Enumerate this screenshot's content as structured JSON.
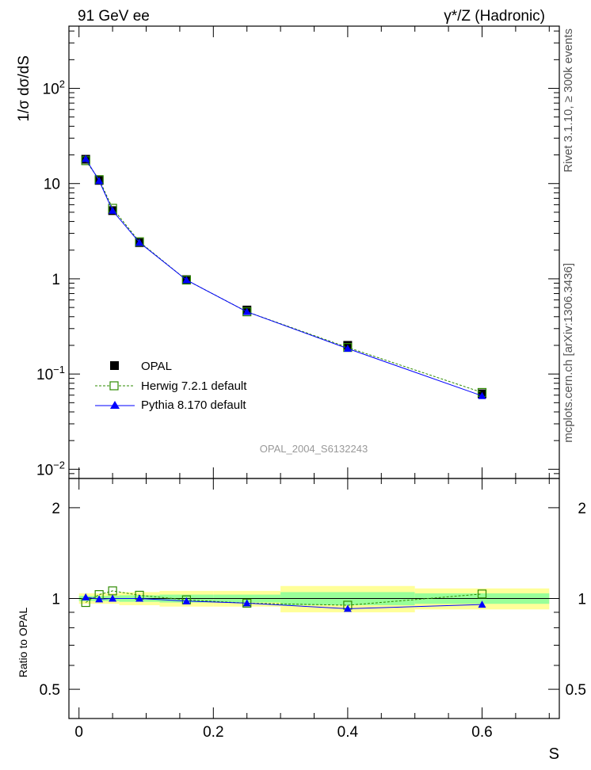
{
  "header": {
    "left_label": "91 GeV ee",
    "right_label": "γ*/Z (Hadronic)"
  },
  "side_labels": {
    "rivet": "Rivet 3.1.10, ≥ 300k events",
    "mcplots": "mcplots.cern.ch [arXiv:1306.3436]"
  },
  "analysis_id": "OPAL_2004_S6132243",
  "colors": {
    "data": "#000000",
    "herwig": "#2e8b00",
    "pythia": "#0000ff",
    "band_inner": "#99ff99",
    "band_outer": "#ffff99"
  },
  "chart_data": [
    {
      "type": "line",
      "panel": "main",
      "ylabel": "1/σ dσ/dS",
      "yscale": "log",
      "xlim": [
        -0.015,
        0.715
      ],
      "ylim": [
        0.008,
        450
      ],
      "y_ticks": [
        {
          "value": 0.01,
          "label": "10",
          "exp": "−2"
        },
        {
          "value": 0.1,
          "label": "10",
          "exp": "−1"
        },
        {
          "value": 1,
          "label": "1",
          "exp": ""
        },
        {
          "value": 10,
          "label": "10",
          "exp": ""
        },
        {
          "value": 100,
          "label": "10",
          "exp": "2"
        }
      ],
      "legend_position": "middle-left",
      "series": [
        {
          "name": "OPAL",
          "style": "markers-square",
          "x": [
            0.01,
            0.03,
            0.05,
            0.09,
            0.16,
            0.25,
            0.4,
            0.6
          ],
          "values": [
            18.0,
            10.8,
            5.2,
            2.4,
            0.98,
            0.47,
            0.2,
            0.062
          ]
        },
        {
          "name": "Herwig 7.2.1 default",
          "style": "dashed-open-square",
          "x": [
            0.01,
            0.03,
            0.05,
            0.09,
            0.16,
            0.25,
            0.4,
            0.6
          ],
          "values": [
            17.4,
            11.0,
            5.5,
            2.45,
            0.97,
            0.45,
            0.19,
            0.064
          ]
        },
        {
          "name": "Pythia 8.170 default",
          "style": "solid-triangle",
          "x": [
            0.01,
            0.03,
            0.05,
            0.09,
            0.16,
            0.25,
            0.4,
            0.6
          ],
          "values": [
            18.2,
            10.7,
            5.2,
            2.4,
            0.97,
            0.45,
            0.185,
            0.059
          ]
        }
      ]
    },
    {
      "type": "line",
      "panel": "ratio",
      "ylabel": "Ratio to OPAL",
      "xlabel": "S",
      "yscale": "log",
      "xlim": [
        -0.015,
        0.715
      ],
      "ylim": [
        0.4,
        2.5
      ],
      "x_ticks": [
        {
          "value": 0,
          "label": "0"
        },
        {
          "value": 0.2,
          "label": "0.2"
        },
        {
          "value": 0.4,
          "label": "0.4"
        },
        {
          "value": 0.6,
          "label": "0.6"
        }
      ],
      "y_ticks": [
        {
          "value": 0.5,
          "label": "0.5"
        },
        {
          "value": 1,
          "label": "1"
        },
        {
          "value": 2,
          "label": "2"
        }
      ],
      "uncertainty_bands": [
        {
          "x_range": [
            0.0,
            0.02
          ],
          "inner": [
            0.98,
            1.02
          ],
          "outer": [
            0.96,
            1.04
          ]
        },
        {
          "x_range": [
            0.02,
            0.04
          ],
          "inner": [
            0.98,
            1.02
          ],
          "outer": [
            0.96,
            1.04
          ]
        },
        {
          "x_range": [
            0.04,
            0.06
          ],
          "inner": [
            0.98,
            1.02
          ],
          "outer": [
            0.96,
            1.04
          ]
        },
        {
          "x_range": [
            0.06,
            0.12
          ],
          "inner": [
            0.975,
            1.025
          ],
          "outer": [
            0.95,
            1.05
          ]
        },
        {
          "x_range": [
            0.12,
            0.2
          ],
          "inner": [
            0.97,
            1.03
          ],
          "outer": [
            0.94,
            1.06
          ]
        },
        {
          "x_range": [
            0.2,
            0.3
          ],
          "inner": [
            0.97,
            1.03
          ],
          "outer": [
            0.94,
            1.06
          ]
        },
        {
          "x_range": [
            0.3,
            0.5
          ],
          "inner": [
            0.95,
            1.05
          ],
          "outer": [
            0.9,
            1.1
          ]
        },
        {
          "x_range": [
            0.5,
            0.7
          ],
          "inner": [
            0.96,
            1.04
          ],
          "outer": [
            0.92,
            1.08
          ]
        }
      ],
      "series": [
        {
          "name": "Herwig 7.2.1 default",
          "style": "dashed-open-square",
          "x": [
            0.01,
            0.03,
            0.05,
            0.09,
            0.16,
            0.25,
            0.4,
            0.6
          ],
          "values": [
            0.97,
            1.03,
            1.06,
            1.025,
            0.99,
            0.965,
            0.95,
            1.035
          ]
        },
        {
          "name": "Pythia 8.170 default",
          "style": "solid-triangle",
          "x": [
            0.01,
            0.03,
            0.05,
            0.09,
            0.16,
            0.25,
            0.4,
            0.6
          ],
          "values": [
            1.01,
            0.995,
            1.0,
            1.0,
            0.98,
            0.965,
            0.925,
            0.955
          ]
        }
      ]
    }
  ]
}
